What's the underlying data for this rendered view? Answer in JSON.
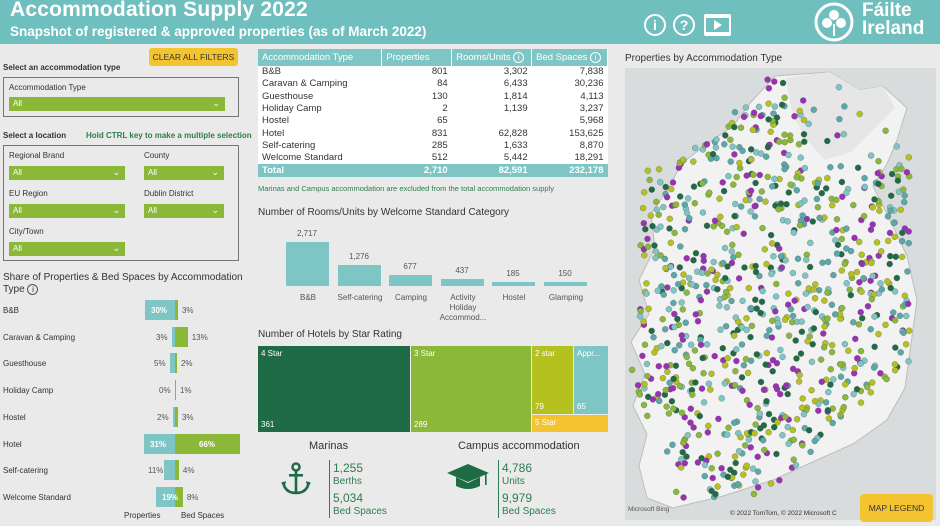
{
  "header": {
    "title": "Accommodation Supply 2022",
    "subtitle": "Snapshot of registered & approved properties (as of March 2022)",
    "logo_line1": "Fáilte",
    "logo_line2": "Ireland"
  },
  "filters": {
    "clear_label": "CLEAR ALL FILTERS",
    "accom_section": "Select an accommodation type",
    "accom_type_label": "Accommodation Type",
    "accom_type_value": "All",
    "location_section": "Select a location",
    "ctrl_hint": "Hold CTRL key to make a multiple selection",
    "regional_brand_label": "Regional Brand",
    "regional_brand_value": "All",
    "county_label": "County",
    "county_value": "All",
    "eu_region_label": "EU Region",
    "eu_region_value": "All",
    "dublin_district_label": "Dublin District",
    "dublin_district_value": "All",
    "city_label": "City/Town",
    "city_value": "All"
  },
  "share": {
    "title": "Share of Properties & Bed Spaces by Accommodation Type",
    "axis_left": "Properties",
    "axis_right": "Bed Spaces",
    "rows": [
      {
        "label": "B&B",
        "properties": "30%",
        "beds": "3%",
        "p": 30,
        "b": 3
      },
      {
        "label": "Caravan & Camping",
        "properties": "3%",
        "beds": "13%",
        "p": 3,
        "b": 13
      },
      {
        "label": "Guesthouse",
        "properties": "5%",
        "beds": "2%",
        "p": 5,
        "b": 2
      },
      {
        "label": "Holiday Camp",
        "properties": "0%",
        "beds": "1%",
        "p": 0,
        "b": 1
      },
      {
        "label": "Hostel",
        "properties": "2%",
        "beds": "3%",
        "p": 2,
        "b": 3
      },
      {
        "label": "Hotel",
        "properties": "31%",
        "beds": "66%",
        "p": 31,
        "b": 66
      },
      {
        "label": "Self-catering",
        "properties": "11%",
        "beds": "4%",
        "p": 11,
        "b": 4
      },
      {
        "label": "Welcome Standard",
        "properties": "19%",
        "beds": "8%",
        "p": 19,
        "b": 8
      }
    ]
  },
  "table": {
    "headers": [
      "Accommodation Type",
      "Properties",
      "Rooms/Units",
      "Bed Spaces"
    ],
    "rows": [
      [
        "B&B",
        "801",
        "3,302",
        "7,838"
      ],
      [
        "Caravan & Camping",
        "84",
        "6,433",
        "30,236"
      ],
      [
        "Guesthouse",
        "130",
        "1,814",
        "4,113"
      ],
      [
        "Holiday Camp",
        "2",
        "1,139",
        "3,237"
      ],
      [
        "Hostel",
        "65",
        "",
        "5,968"
      ],
      [
        "Hotel",
        "831",
        "62,828",
        "153,625"
      ],
      [
        "Self-catering",
        "285",
        "1,633",
        "8,870"
      ],
      [
        "Welcome Standard",
        "512",
        "5,442",
        "18,291"
      ]
    ],
    "total": [
      "Total",
      "2,710",
      "82,591",
      "232,178"
    ],
    "note": "Marinas and Campus accommodation are excluded from the total accommodation supply"
  },
  "chart_data": [
    {
      "type": "bar",
      "title": "Number of Rooms/Units by Welcome Standard Category",
      "categories": [
        "B&B",
        "Self-catering",
        "Camping",
        "Activity Holiday Accommod...",
        "Hostel",
        "Glamping"
      ],
      "values": [
        2717,
        1276,
        677,
        437,
        185,
        150
      ],
      "labels": [
        "2,717",
        "1,276",
        "677",
        "437",
        "185",
        "150"
      ]
    },
    {
      "type": "heatmap",
      "title": "Number of Hotels by Star Rating",
      "categories": [
        "4 Star",
        "3 Star",
        "2 star",
        "Appr...",
        "5 Star"
      ],
      "values": [
        361,
        289,
        79,
        65,
        null
      ]
    }
  ],
  "marinas": {
    "title": "Marinas",
    "berths_value": "1,255",
    "berths_label": "Berths",
    "beds_value": "5,034",
    "beds_label": "Bed Spaces"
  },
  "campus": {
    "title": "Campus accommodation",
    "units_value": "4,786",
    "units_label": "Units",
    "beds_value": "9,979",
    "beds_label": "Bed Spaces"
  },
  "map": {
    "title": "Properties by Accommodation Type",
    "legend_label": "MAP LEGEND",
    "attribution": "© 2022 TomTom, © 2022 Microsoft C",
    "bing": "Microsoft Bing"
  },
  "colors": {
    "teal": "#7ec6c5",
    "green": "#8cb83a",
    "dark_green": "#1f6b45",
    "yellow": "#f4c430"
  }
}
